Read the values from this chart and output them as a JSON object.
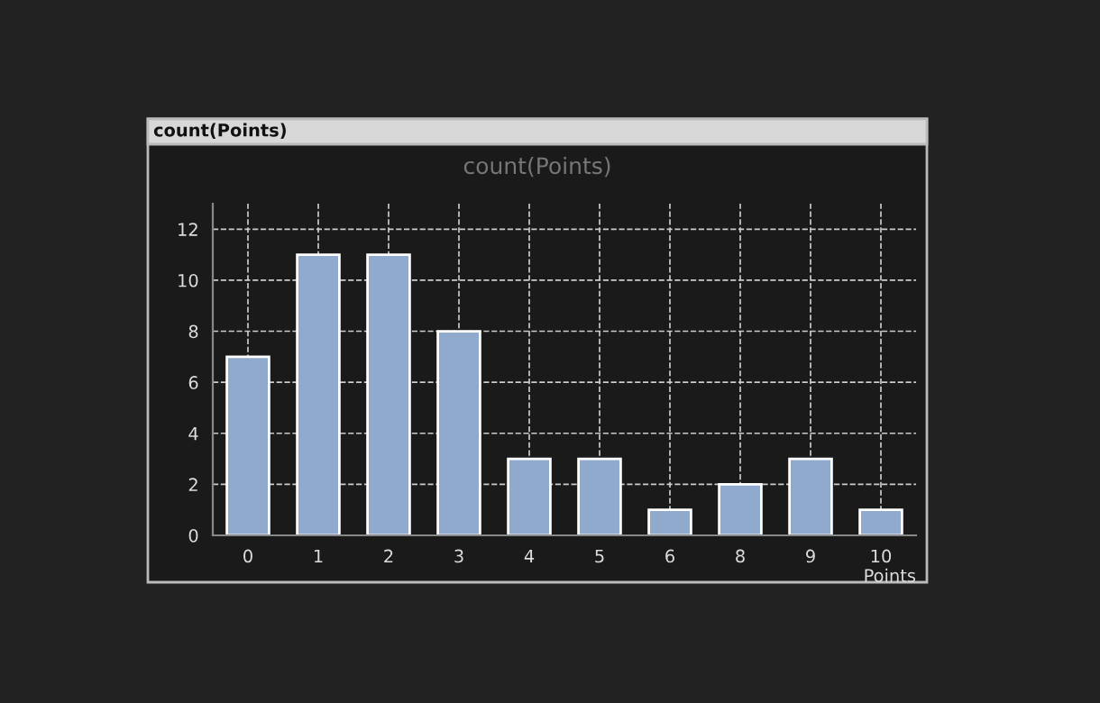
{
  "chart_data": {
    "type": "bar",
    "title": "count(Points)",
    "xlabel": "Points",
    "annotations": [
      "count(Points)"
    ],
    "categories": [
      "0",
      "1",
      "2",
      "3",
      "4",
      "5",
      "6",
      "8",
      "9",
      "10"
    ],
    "values": [
      7,
      11,
      11,
      8,
      3,
      3,
      1,
      2,
      3,
      1
    ],
    "color": "#8faacc",
    "ylim": [
      0,
      13
    ],
    "yticks": [
      0,
      2,
      4,
      6,
      8,
      10,
      12
    ],
    "grid": true
  }
}
